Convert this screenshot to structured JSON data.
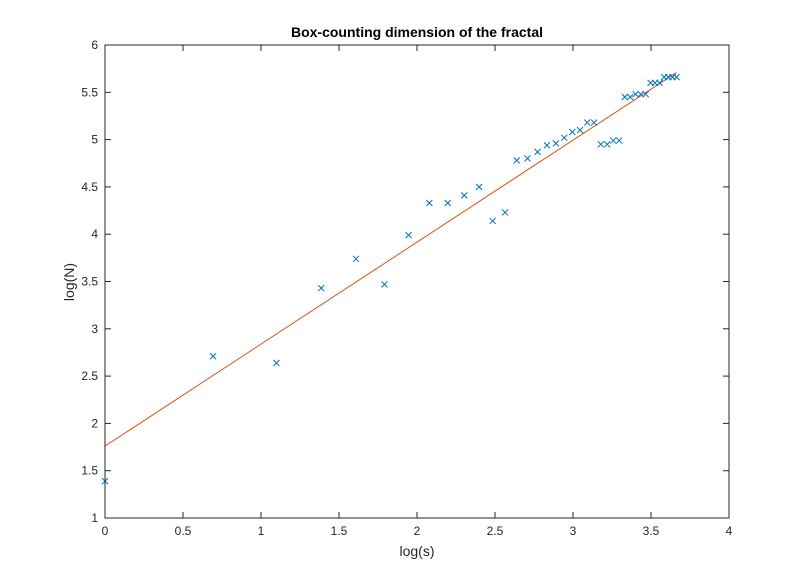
{
  "chart_data": {
    "type": "scatter",
    "title": "Box-counting dimension of the fractal",
    "xlabel": "log(s)",
    "ylabel": "log(N)",
    "xlim": [
      0,
      4
    ],
    "ylim": [
      1,
      6
    ],
    "xticks": [
      "0",
      "0.5",
      "1",
      "1.5",
      "2",
      "2.5",
      "3",
      "3.5",
      "4"
    ],
    "yticks": [
      "1",
      "1.5",
      "2",
      "2.5",
      "3",
      "3.5",
      "4",
      "4.5",
      "5",
      "5.5",
      "6"
    ],
    "grid": false,
    "legend": "none",
    "series": [
      {
        "kind": "scatter",
        "marker": "x",
        "color": "#0072BD",
        "points": [
          [
            0.0,
            1.39
          ],
          [
            0.693,
            2.71
          ],
          [
            1.099,
            2.64
          ],
          [
            1.386,
            3.43
          ],
          [
            1.609,
            3.74
          ],
          [
            1.792,
            3.47
          ],
          [
            1.946,
            3.99
          ],
          [
            2.079,
            4.33
          ],
          [
            2.197,
            4.33
          ],
          [
            2.303,
            4.41
          ],
          [
            2.398,
            4.5
          ],
          [
            2.485,
            4.14
          ],
          [
            2.565,
            4.23
          ],
          [
            2.639,
            4.78
          ],
          [
            2.708,
            4.8
          ],
          [
            2.773,
            4.87
          ],
          [
            2.833,
            4.94
          ],
          [
            2.89,
            4.96
          ],
          [
            2.944,
            5.02
          ],
          [
            2.996,
            5.08
          ],
          [
            3.045,
            5.1
          ],
          [
            3.091,
            5.18
          ],
          [
            3.135,
            5.18
          ],
          [
            3.178,
            4.95
          ],
          [
            3.219,
            4.95
          ],
          [
            3.258,
            4.99
          ],
          [
            3.296,
            4.99
          ],
          [
            3.332,
            5.45
          ],
          [
            3.367,
            5.45
          ],
          [
            3.401,
            5.48
          ],
          [
            3.434,
            5.48
          ],
          [
            3.466,
            5.48
          ],
          [
            3.497,
            5.6
          ],
          [
            3.526,
            5.6
          ],
          [
            3.555,
            5.6
          ],
          [
            3.584,
            5.66
          ],
          [
            3.611,
            5.66
          ],
          [
            3.638,
            5.66
          ],
          [
            3.664,
            5.66
          ]
        ]
      },
      {
        "kind": "line",
        "color": "#D95319",
        "points": [
          [
            0,
            1.76
          ],
          [
            3.664,
            5.71
          ]
        ]
      }
    ]
  }
}
